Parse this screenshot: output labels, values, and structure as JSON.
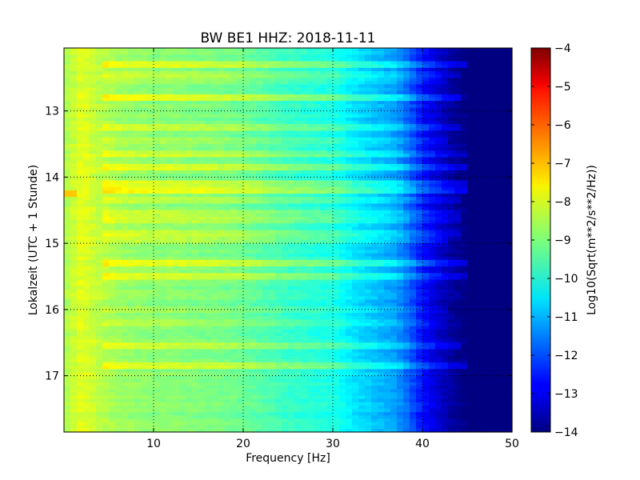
{
  "chart_data": {
    "type": "heatmap",
    "title": "BW BE1 HHZ: 2018-11-11",
    "xlabel": "Frequency [Hz]",
    "ylabel": "Lokalzeit (UTC + 1 Stunde)",
    "colorbar_label": "Log10(Sqrt(m**2/s**2/Hz))",
    "colormap": "jet",
    "xlim": [
      0,
      50
    ],
    "ylim": [
      17.85,
      12.05
    ],
    "y_inverted": true,
    "grid": true,
    "x_ticks": [
      10,
      20,
      30,
      40,
      50
    ],
    "x_tick_labels": [
      "10",
      "20",
      "30",
      "40",
      "50"
    ],
    "y_ticks": [
      13,
      14,
      15,
      16,
      17
    ],
    "y_tick_labels": [
      "13",
      "14",
      "15",
      "16",
      "17"
    ],
    "colorbar_range": [
      -14,
      -4
    ],
    "colorbar_ticks": [
      -4,
      -5,
      -6,
      -7,
      -8,
      -9,
      -10,
      -11,
      -12,
      -13,
      -14
    ],
    "colorbar_tick_labels": [
      "−4",
      "−5",
      "−6",
      "−7",
      "−8",
      "−9",
      "−10",
      "−11",
      "−12",
      "−13",
      "−14"
    ],
    "base_profile": {
      "frequency_hz": [
        0,
        2,
        4,
        6,
        8,
        10,
        12,
        15,
        18,
        20,
        22,
        25,
        28,
        30,
        31.5,
        33,
        35,
        37,
        38,
        39,
        40,
        41,
        42,
        43,
        44,
        45,
        50
      ],
      "log10_value": [
        -8.6,
        -8.0,
        -8.4,
        -8.7,
        -8.8,
        -8.9,
        -8.9,
        -9.0,
        -9.1,
        -9.2,
        -9.4,
        -9.7,
        -9.9,
        -10.0,
        -10.3,
        -10.6,
        -10.9,
        -11.2,
        -11.6,
        -12.1,
        -12.6,
        -13.0,
        -13.3,
        -13.6,
        -13.85,
        -14.0,
        -14.0
      ]
    },
    "bands": [
      {
        "time": 12.3,
        "log10_offset": 0.8,
        "max_hz": 45
      },
      {
        "time": 12.45,
        "log10_offset": 0.5,
        "max_hz": 44
      },
      {
        "time": 12.55,
        "log10_offset": 0.3,
        "max_hz": 43
      },
      {
        "time": 12.8,
        "log10_offset": 0.8,
        "max_hz": 44
      },
      {
        "time": 13.25,
        "log10_offset": 0.5,
        "max_hz": 44
      },
      {
        "time": 13.45,
        "log10_offset": 0.4,
        "max_hz": 43
      },
      {
        "time": 13.65,
        "log10_offset": 0.6,
        "max_hz": 45
      },
      {
        "time": 13.85,
        "log10_offset": 0.7,
        "max_hz": 45
      },
      {
        "time": 14.1,
        "log10_offset": 0.7,
        "max_hz": 45
      },
      {
        "time": 14.2,
        "log10_offset": 1.0,
        "max_hz": 46
      },
      {
        "time": 14.35,
        "log10_offset": 0.5,
        "max_hz": 44
      },
      {
        "time": 14.55,
        "log10_offset": 0.5,
        "max_hz": 44
      },
      {
        "time": 14.65,
        "log10_offset": 0.6,
        "max_hz": 44
      },
      {
        "time": 14.85,
        "log10_offset": 0.6,
        "max_hz": 44
      },
      {
        "time": 14.95,
        "log10_offset": 0.4,
        "max_hz": 43
      },
      {
        "time": 15.3,
        "log10_offset": 1.0,
        "max_hz": 45
      },
      {
        "time": 15.5,
        "log10_offset": 0.8,
        "max_hz": 45
      },
      {
        "time": 16.0,
        "log10_offset": 0.3,
        "max_hz": 43
      },
      {
        "time": 16.2,
        "log10_offset": 0.3,
        "max_hz": 42
      },
      {
        "time": 16.55,
        "log10_offset": 0.6,
        "max_hz": 44
      },
      {
        "time": 16.85,
        "log10_offset": 0.8,
        "max_hz": 45
      }
    ],
    "hotspot": {
      "frequency_hz": 1,
      "time": 14.25,
      "log10_value": -7.2
    }
  }
}
